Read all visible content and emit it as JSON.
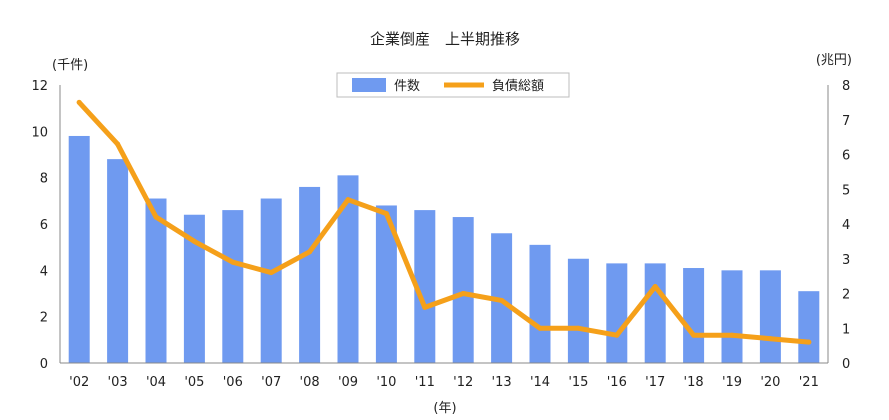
{
  "chart_data": {
    "type": "bar+line",
    "title": "企業倒産　上半期推移",
    "xlabel": "(年)",
    "ylabel_left": "(千件)",
    "ylabel_right": "(兆円)",
    "categories": [
      "'02",
      "'03",
      "'04",
      "'05",
      "'06",
      "'07",
      "'08",
      "'09",
      "'10",
      "'11",
      "'12",
      "'13",
      "'14",
      "'15",
      "'16",
      "'17",
      "'18",
      "'19",
      "'20",
      "'21"
    ],
    "y_left": {
      "min": 0,
      "max": 12,
      "ticks": [
        "0",
        "2",
        "4",
        "6",
        "8",
        "10",
        "12"
      ]
    },
    "y_right": {
      "min": 0,
      "max": 8,
      "ticks": [
        "0",
        "1",
        "2",
        "3",
        "4",
        "5",
        "6",
        "7",
        "8"
      ]
    },
    "grid": false,
    "legend_position": "top-center",
    "series": [
      {
        "name": "件数",
        "type": "bar",
        "axis": "left",
        "color": "#6f9af0",
        "values": [
          9.8,
          8.8,
          7.1,
          6.4,
          6.6,
          7.1,
          7.6,
          8.1,
          6.8,
          6.6,
          6.3,
          5.6,
          5.1,
          4.5,
          4.3,
          4.3,
          4.1,
          4.0,
          4.0,
          3.1
        ]
      },
      {
        "name": "負債総額",
        "type": "line",
        "axis": "right",
        "color": "#f5a01a",
        "values": [
          7.5,
          6.3,
          4.2,
          3.5,
          2.9,
          2.6,
          3.2,
          4.7,
          4.3,
          1.6,
          2.0,
          1.8,
          1.0,
          1.0,
          0.8,
          2.2,
          0.8,
          0.8,
          0.7,
          0.6
        ]
      }
    ]
  }
}
